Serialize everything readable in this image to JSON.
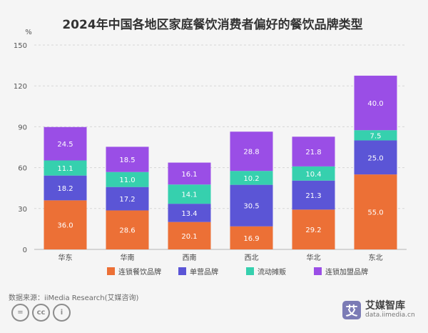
{
  "chart_data": {
    "type": "bar",
    "stacked": true,
    "title": "2024年中国各地区家庭餐饮消费者偏好的餐饮品牌类型",
    "ylabel": "%",
    "ylim": [
      0,
      150
    ],
    "yticks": [
      "0",
      "30",
      "60",
      "90",
      "120",
      "150"
    ],
    "grid": true,
    "legend_position": "bottom",
    "categories": [
      "华东",
      "华南",
      "西南",
      "西北",
      "华北",
      "东北"
    ],
    "series": [
      {
        "name": "连锁餐饮品牌",
        "color": "#ec7036",
        "values": [
          36.0,
          28.6,
          20.1,
          16.9,
          29.2,
          55.0
        ],
        "labels": [
          "36.0",
          "28.6",
          "20.1",
          "16.9",
          "29.2",
          "55.0"
        ]
      },
      {
        "name": "单营品牌",
        "color": "#5b55d6",
        "values": [
          18.2,
          17.2,
          13.4,
          30.5,
          21.3,
          25.0
        ],
        "labels": [
          "18.2",
          "17.2",
          "13.4",
          "30.5",
          "21.3",
          "25.0"
        ]
      },
      {
        "name": "流动摊贩",
        "color": "#36d0ae",
        "values": [
          11.1,
          11.0,
          14.1,
          10.2,
          10.4,
          7.5
        ],
        "labels": [
          "11.1",
          "11.0",
          "14.1",
          "10.2",
          "10.4",
          "7.5"
        ]
      },
      {
        "name": "连锁加盟品牌",
        "color": "#9a4ee6",
        "values": [
          24.5,
          18.5,
          16.1,
          28.8,
          21.8,
          40.0
        ],
        "labels": [
          "24.5",
          "18.5",
          "16.1",
          "28.8",
          "21.8",
          "40.0"
        ]
      }
    ]
  },
  "footer": {
    "source": "数据来源：iiMedia Research(艾媒咨询)",
    "cc_icons": [
      "=",
      "cc",
      "i"
    ]
  },
  "brand": {
    "logo_char": "艾",
    "name": "艾媒智库",
    "url": "data.iimedia.cn"
  }
}
